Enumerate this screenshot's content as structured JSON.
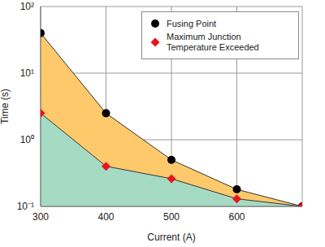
{
  "chart_data": {
    "type": "line",
    "x_label": "Current (A)",
    "y_label": "Time (s)",
    "x": [
      300,
      400,
      500,
      600,
      700
    ],
    "series": [
      {
        "name": "Fusing Point",
        "color": "#000000",
        "marker": "circle",
        "values": [
          40,
          2.5,
          0.5,
          0.18,
          0.1
        ]
      },
      {
        "name": "Maximum Junction Temperature Exceeded",
        "color": "#e8141c",
        "marker": "diamond",
        "values": [
          2.5,
          0.4,
          0.26,
          0.13,
          0.1
        ]
      }
    ],
    "xlim": [
      300,
      700
    ],
    "xticks": [
      300,
      400,
      500,
      600
    ],
    "ylim": [
      0.1,
      100
    ],
    "yticks": [
      {
        "value": 0.1,
        "label": "10⁻¹"
      },
      {
        "value": 1,
        "label": "10⁰"
      },
      {
        "value": 10,
        "label": "10¹"
      },
      {
        "value": 100,
        "label": "10²"
      }
    ],
    "log": "y",
    "grid": true,
    "legend": "upper right"
  }
}
